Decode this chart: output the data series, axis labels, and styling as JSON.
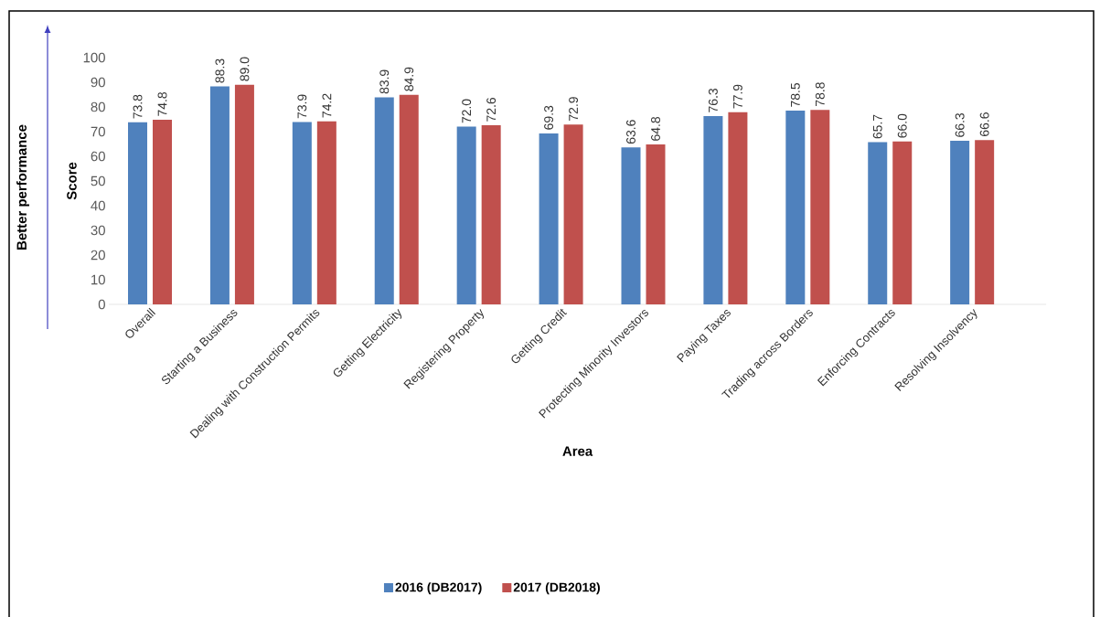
{
  "chart_data": {
    "type": "bar",
    "xlabel": "Area",
    "ylabel": "Score",
    "annotations": [
      "Better performance"
    ],
    "categories": [
      "Overall",
      "Starting a Business",
      "Dealing with Construction Permits",
      "Getting Electricity",
      "Registering Property",
      "Getting Credit",
      "Protecting Minority Investors",
      "Paying Taxes",
      "Trading across Borders",
      "Enforcing Contracts",
      "Resolving Insolvency"
    ],
    "series": [
      {
        "name": "2016 (DB2017)",
        "color": "#4f81bd",
        "values": [
          73.8,
          88.3,
          73.9,
          83.9,
          72.0,
          69.3,
          63.6,
          76.3,
          78.5,
          65.7,
          66.3
        ],
        "value_labels": [
          "73.8",
          "88.3",
          "73.9",
          "83.9",
          "72.0",
          "69.3",
          "63.6",
          "76.3",
          "78.5",
          "65.7",
          "66.3"
        ]
      },
      {
        "name": "2017 (DB2018)",
        "color": "#c0504d",
        "values": [
          74.8,
          89.0,
          74.2,
          84.9,
          72.6,
          72.9,
          64.8,
          77.9,
          78.8,
          66.0,
          66.6
        ],
        "value_labels": [
          "74.8",
          "89.0",
          "74.2",
          "84.9",
          "72.6",
          "72.9",
          "64.8",
          "77.9",
          "78.8",
          "66.0",
          "66.6"
        ]
      }
    ],
    "ylim": [
      0,
      100
    ],
    "yticks": [
      0,
      10,
      20,
      30,
      40,
      50,
      60,
      70,
      80,
      90,
      100
    ],
    "legend": "bottom"
  }
}
